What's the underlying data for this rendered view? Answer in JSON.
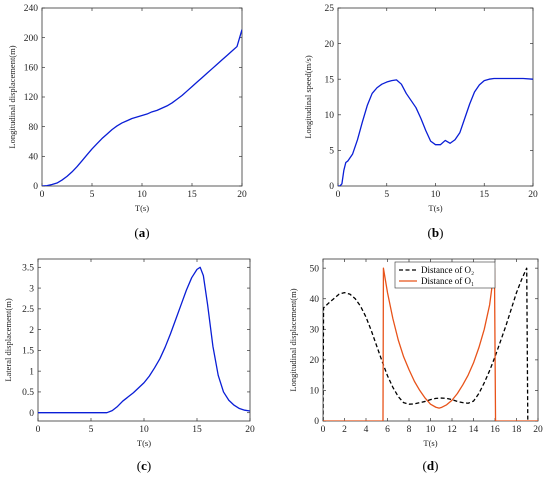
{
  "chart_data": [
    {
      "id": "a",
      "type": "line",
      "caption": "(a)",
      "xlabel": "T(s)",
      "ylabel": "Longitudinal displacement(m)",
      "xlim": [
        0,
        20
      ],
      "ylim": [
        0,
        240
      ],
      "xticks": [
        0,
        5,
        10,
        15,
        20
      ],
      "yticks": [
        0,
        40,
        80,
        120,
        160,
        200,
        240
      ],
      "colors": {
        "line": "#0a1ed6"
      },
      "series": [
        {
          "color": "#0a1ed6",
          "style": "solid",
          "x": [
            0,
            0.5,
            1,
            1.5,
            2,
            2.5,
            3,
            3.5,
            4,
            4.5,
            5,
            5.5,
            6,
            6.5,
            7,
            7.5,
            8,
            8.5,
            9,
            9.5,
            10,
            10.5,
            11,
            11.5,
            12,
            12.5,
            13,
            13.5,
            14,
            14.5,
            15,
            15.5,
            16,
            16.5,
            17,
            17.5,
            18,
            18.5,
            19,
            19.5,
            20
          ],
          "y": [
            0,
            0.5,
            2,
            4,
            8,
            13,
            19,
            26,
            34,
            42,
            50,
            57,
            64,
            70,
            76,
            81,
            85,
            88,
            91,
            93,
            95,
            97,
            100,
            102,
            105,
            108,
            112,
            117,
            122,
            128,
            134,
            140,
            146,
            152,
            158,
            164,
            170,
            176,
            182,
            188,
            211
          ]
        }
      ],
      "grid": false
    },
    {
      "id": "b",
      "type": "line",
      "caption": "(b)",
      "xlabel": "T(s)",
      "ylabel": "Longitudinal speed(m/s)",
      "xlim": [
        0,
        20
      ],
      "ylim": [
        0,
        25
      ],
      "xticks": [
        0,
        5,
        10,
        15,
        20
      ],
      "yticks": [
        0,
        5,
        10,
        15,
        20,
        25
      ],
      "series": [
        {
          "color": "#0a1ed6",
          "style": "solid",
          "x": [
            0,
            0.2,
            0.4,
            0.6,
            0.8,
            1,
            1.5,
            2,
            2.5,
            3,
            3.5,
            4,
            4.5,
            5,
            5.5,
            6,
            6.5,
            7,
            7.5,
            8,
            8.5,
            9,
            9.5,
            10,
            10.5,
            11,
            11.5,
            12,
            12.5,
            13,
            13.5,
            14,
            14.5,
            15,
            15.5,
            16,
            16.5,
            17,
            18,
            19,
            20
          ],
          "y": [
            0,
            0,
            0.3,
            2.2,
            3.3,
            3.5,
            4.5,
            6.5,
            9,
            11.3,
            13,
            13.8,
            14.3,
            14.6,
            14.8,
            14.9,
            14.3,
            13,
            12,
            11,
            9.5,
            7.8,
            6.3,
            5.8,
            5.8,
            6.4,
            6,
            6.5,
            7.5,
            9.5,
            11.5,
            13.2,
            14.2,
            14.8,
            15,
            15.1,
            15.1,
            15.1,
            15.1,
            15.1,
            15
          ]
        }
      ],
      "grid": false
    },
    {
      "id": "c",
      "type": "line",
      "caption": "(c)",
      "xlabel": "T(s)",
      "ylabel": "Lateral displacement(m)",
      "xlim": [
        0,
        20
      ],
      "ylim": [
        -0.2,
        3.7
      ],
      "xticks": [
        0,
        5,
        10,
        15,
        20
      ],
      "yticks": [
        0,
        0.5,
        1,
        1.5,
        2,
        2.5,
        3,
        3.5
      ],
      "ytick_labels": [
        "0",
        "0.5",
        "1",
        "1.5",
        "2",
        "2.5",
        "3",
        "3.5"
      ],
      "series": [
        {
          "color": "#0a1ed6",
          "style": "solid",
          "x": [
            0,
            1,
            2,
            3,
            4,
            5,
            6,
            6.5,
            7,
            7.5,
            8,
            8.5,
            9,
            9.5,
            10,
            10.5,
            11,
            11.5,
            12,
            12.5,
            13,
            13.5,
            14,
            14.5,
            15,
            15.3,
            15.6,
            16,
            16.5,
            17,
            17.5,
            18,
            18.5,
            19,
            19.5,
            20
          ],
          "y": [
            0,
            0,
            0,
            0,
            0,
            0,
            0,
            0,
            0.05,
            0.15,
            0.28,
            0.38,
            0.48,
            0.6,
            0.72,
            0.88,
            1.08,
            1.3,
            1.58,
            1.9,
            2.25,
            2.6,
            2.95,
            3.25,
            3.45,
            3.5,
            3.3,
            2.6,
            1.6,
            0.9,
            0.5,
            0.3,
            0.18,
            0.1,
            0.06,
            0.04
          ]
        }
      ],
      "grid": false
    },
    {
      "id": "d",
      "type": "line",
      "caption": "(d)",
      "xlabel": "T(s)",
      "ylabel": "Longitudinal displacement(m)",
      "xlim": [
        0,
        20
      ],
      "ylim": [
        0,
        53
      ],
      "xticks": [
        0,
        2,
        4,
        6,
        8,
        10,
        12,
        14,
        16,
        18,
        20
      ],
      "yticks": [
        0,
        10,
        20,
        30,
        40,
        50
      ],
      "legend": {
        "position": "top",
        "entries": [
          "Distance of O₂",
          "Distance of O₁"
        ]
      },
      "series": [
        {
          "name": "Distance of O₂",
          "color": "#000000",
          "style": "dashed",
          "x": [
            0,
            0.05,
            0.5,
            1,
            1.5,
            2,
            2.5,
            3,
            3.5,
            4,
            4.5,
            5,
            5.5,
            6,
            6.5,
            7,
            7.5,
            8,
            8.5,
            9,
            9.5,
            10,
            10.5,
            11,
            11.5,
            12,
            12.5,
            13,
            13.5,
            14,
            14.5,
            15,
            15.5,
            16,
            16.5,
            17,
            17.5,
            18,
            18.5,
            18.95,
            19.0,
            19.05
          ],
          "y": [
            0,
            37,
            38.5,
            40,
            41.5,
            42,
            41.5,
            40,
            37.5,
            34,
            29.5,
            24.5,
            19.5,
            14.8,
            11,
            8,
            6,
            5.5,
            5.6,
            6,
            6.4,
            7,
            7.4,
            7.5,
            7.4,
            7,
            6.4,
            6.0,
            5.8,
            6.5,
            9,
            12.5,
            16.5,
            21,
            26,
            31,
            36.5,
            42,
            46.5,
            50,
            25,
            0
          ]
        },
        {
          "name": "Distance of O₁",
          "color": "#e8531a",
          "style": "solid",
          "x": [
            0,
            5.58,
            5.62,
            6,
            6.5,
            7,
            7.5,
            8,
            8.5,
            9,
            9.5,
            10,
            10.5,
            10.8,
            11,
            11.5,
            12,
            12.5,
            13,
            13.5,
            14,
            14.5,
            15,
            15.5,
            15.95,
            16.0,
            16.05,
            20
          ],
          "y": [
            0,
            0,
            50,
            42,
            33.5,
            26.5,
            21,
            16.8,
            13,
            10,
            7.5,
            5.5,
            4.5,
            4.2,
            4.4,
            5.3,
            6.8,
            9,
            11.8,
            15,
            19,
            24,
            30,
            38,
            50,
            25,
            0,
            0
          ]
        }
      ],
      "grid": false
    }
  ]
}
